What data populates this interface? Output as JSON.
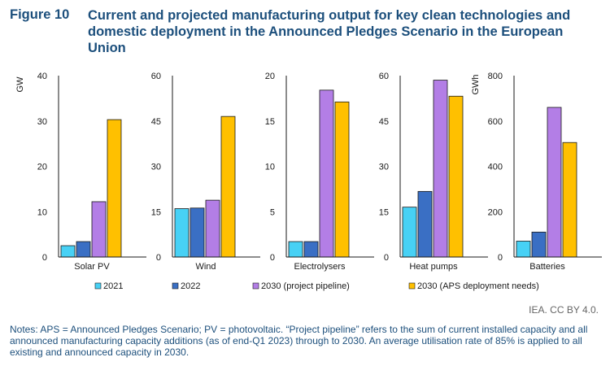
{
  "figure": {
    "label": "Figure 10",
    "title": "Current and projected manufacturing output for key clean technologies and domestic deployment in the Announced Pledges Scenario in the European Union"
  },
  "colors": {
    "2021": "#47d1f5",
    "2022": "#3a6fc4",
    "2030 (project pipeline)": "#b37ee6",
    "2030 (APS deployment needs)": "#ffc000"
  },
  "legend": {
    "position": "bottom",
    "items": [
      "2021",
      "2022",
      "2030 (project pipeline)",
      "2030 (APS deployment needs)"
    ]
  },
  "chart_data": [
    {
      "type": "bar",
      "title": "Solar PV",
      "ylabel": "GW",
      "ylim": [
        0,
        40
      ],
      "yticks": [
        0,
        10,
        20,
        30,
        40
      ],
      "ytick_labels": [
        "0",
        "10",
        "20",
        "30",
        "40"
      ],
      "categories": [
        "2021",
        "2022",
        "2030 (project pipeline)",
        "2030 (APS deployment needs)"
      ],
      "values": [
        2.5,
        3.4,
        12.2,
        30.3
      ]
    },
    {
      "type": "bar",
      "title": "Wind",
      "ylabel": "",
      "ylim": [
        0,
        60
      ],
      "yticks": [
        0,
        15,
        30,
        45,
        60
      ],
      "ytick_labels": [
        "0",
        "15",
        "30",
        "45",
        "60"
      ],
      "categories": [
        "2021",
        "2022",
        "2030 (project pipeline)",
        "2030 (APS deployment needs)"
      ],
      "values": [
        16,
        16.2,
        18.8,
        46.5
      ]
    },
    {
      "type": "bar",
      "title": "Electrolysers",
      "ylabel": "",
      "ylim": [
        0,
        20
      ],
      "yticks": [
        0,
        5,
        10,
        15,
        20
      ],
      "ytick_labels": [
        "0",
        "5",
        "10",
        "15",
        "20"
      ],
      "categories": [
        "2021",
        "2022",
        "2030 (project pipeline)",
        "2030 (APS deployment needs)"
      ],
      "values": [
        1.7,
        1.7,
        18.4,
        17.1
      ]
    },
    {
      "type": "bar",
      "title": "Heat pumps",
      "ylabel": "",
      "ylim": [
        0,
        60
      ],
      "yticks": [
        0,
        15,
        30,
        45,
        60
      ],
      "ytick_labels": [
        "0",
        "15",
        "30",
        "45",
        "60"
      ],
      "categories": [
        "2021",
        "2022",
        "2030 (project pipeline)",
        "2030 (APS deployment needs)"
      ],
      "values": [
        16.5,
        21.7,
        58.5,
        53.2
      ]
    },
    {
      "type": "bar",
      "title": "Batteries",
      "ylabel": "GWh",
      "ylim": [
        0,
        800
      ],
      "yticks": [
        0,
        200,
        400,
        600,
        800
      ],
      "ytick_labels": [
        "0",
        "200",
        "400",
        "600",
        "800"
      ],
      "categories": [
        "2021",
        "2022",
        "2030 (project pipeline)",
        "2030 (APS deployment needs)"
      ],
      "values": [
        70,
        110,
        660,
        505
      ]
    }
  ],
  "credit": "IEA. CC BY 4.0.",
  "notes": "Notes: APS = Announced Pledges Scenario; PV = photovoltaic. “Project pipeline” refers to the sum of current installed capacity and all announced manufacturing capacity additions (as of end-Q1 2023) through to 2030. An average utilisation rate of 85% is applied to all existing and announced capacity in 2030."
}
